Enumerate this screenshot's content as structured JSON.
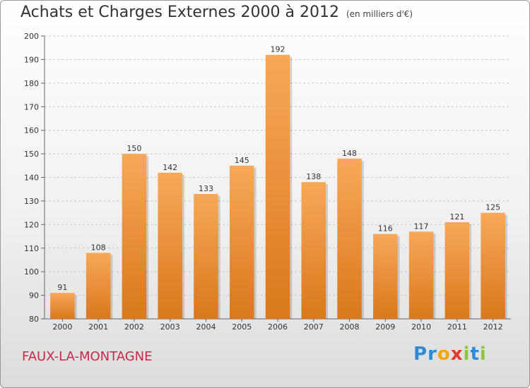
{
  "title": "Achats et Charges Externes 2000 à 2012",
  "unit": "(en milliers d'€)",
  "commune": "FAUX-LA-MONTAGNE",
  "logo": {
    "letters": [
      "P",
      "r",
      "o",
      "x",
      "i",
      "t",
      "i"
    ],
    "colors": [
      "#2e8bd4",
      "#2e8bd4",
      "#f2a60c",
      "#e23a2a",
      "#8cc63f",
      "#2e8bd4",
      "#8cc63f"
    ]
  },
  "colors": {
    "bar": "#f0902f",
    "bar_light": "#f8a858",
    "bar_dark": "#d9781c",
    "grid": "#c8c8c8"
  },
  "chart_data": {
    "type": "bar",
    "title": "Achats et Charges Externes 2000 à 2012",
    "categories": [
      "2000",
      "2001",
      "2002",
      "2003",
      "2004",
      "2005",
      "2006",
      "2007",
      "2008",
      "2009",
      "2010",
      "2011",
      "2012"
    ],
    "values": [
      91,
      108,
      150,
      142,
      133,
      145,
      192,
      138,
      148,
      116,
      117,
      121,
      125
    ],
    "ylim": [
      80,
      200
    ],
    "yticks": [
      80,
      90,
      100,
      110,
      120,
      130,
      140,
      150,
      160,
      170,
      180,
      190,
      200
    ],
    "grid": true,
    "data_labels": true
  }
}
